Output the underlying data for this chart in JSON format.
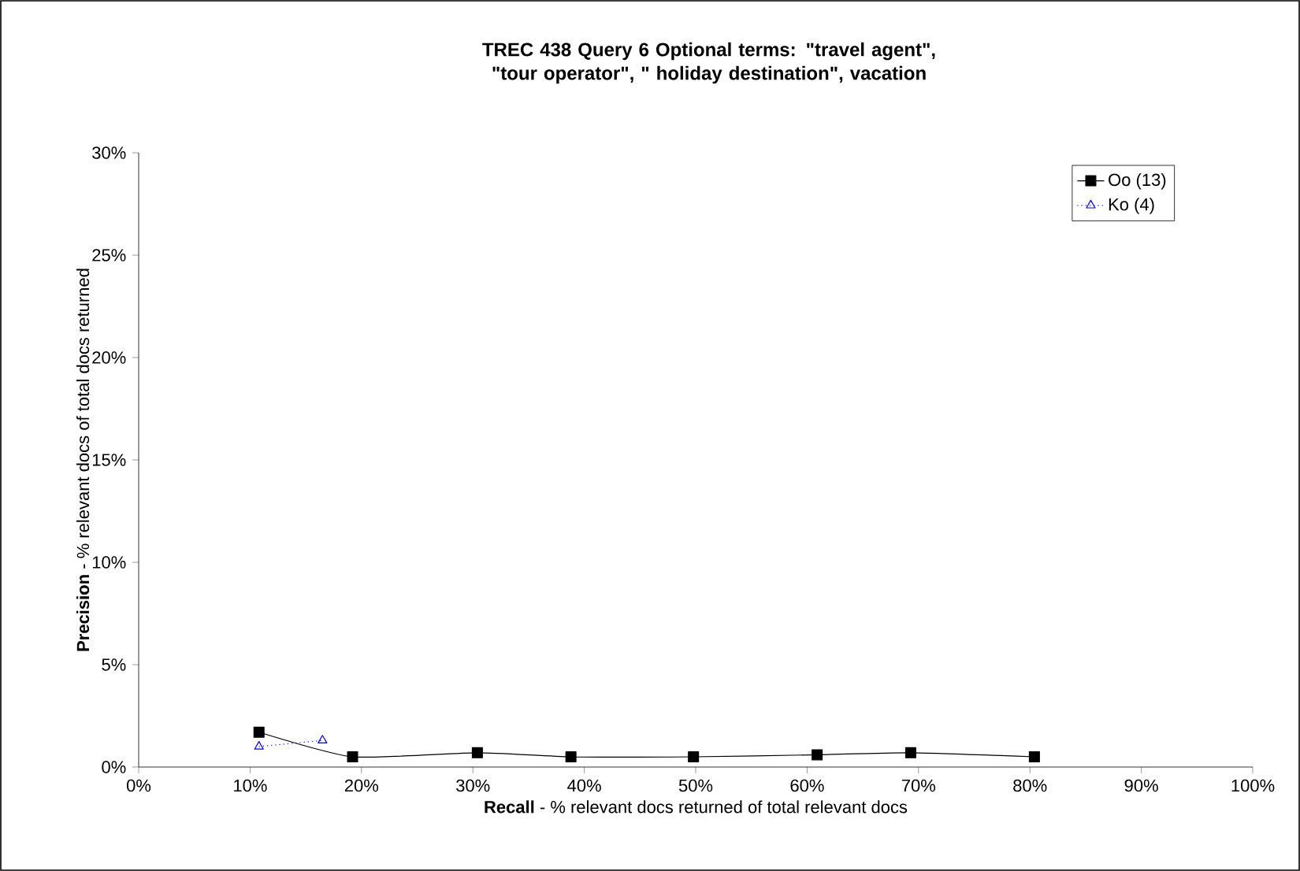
{
  "chart_data": {
    "type": "line",
    "title": "TREC 438 Query 6 Optional terms: \"travel agent\", \"tour operator\",  \" holiday destination\", vacation",
    "xlabel": "**Recall** - % relevant docs returned of total relevant docs",
    "ylabel": "**Precision** - % relevant docs of total docs returned",
    "series": [
      {
        "name": "Oo (13)",
        "color": "#000000",
        "marker": "square",
        "line_style": "solid",
        "x": [
          10.8,
          19.2,
          30.4,
          38.8,
          49.8,
          60.9,
          69.3,
          80.4
        ],
        "values": [
          1.7,
          0.5,
          0.7,
          0.5,
          0.5,
          0.6,
          0.7,
          0.5
        ]
      },
      {
        "name": "Ko (4)",
        "color": "#0000ff",
        "marker": "triangle",
        "line_style": "dotted",
        "x": [
          10.8,
          16.5
        ],
        "values": [
          1.0,
          1.3
        ]
      }
    ],
    "xlim": [
      0,
      100
    ],
    "ylim": [
      0,
      30
    ],
    "xticks": [
      {
        "value": 0,
        "label": "0%"
      },
      {
        "value": 10,
        "label": "10%"
      },
      {
        "value": 20,
        "label": "20%"
      },
      {
        "value": 30,
        "label": "30%"
      },
      {
        "value": 40,
        "label": "40%"
      },
      {
        "value": 50,
        "label": "50%"
      },
      {
        "value": 60,
        "label": "60%"
      },
      {
        "value": 70,
        "label": "70%"
      },
      {
        "value": 80,
        "label": "80%"
      },
      {
        "value": 90,
        "label": "90%"
      },
      {
        "value": 100,
        "label": "100%"
      }
    ],
    "yticks": [
      {
        "value": 0,
        "label": "0%"
      },
      {
        "value": 5,
        "label": "5%"
      },
      {
        "value": 10,
        "label": "10%"
      },
      {
        "value": 15,
        "label": "15%"
      },
      {
        "value": 20,
        "label": "20%"
      },
      {
        "value": 25,
        "label": "25%"
      },
      {
        "value": 30,
        "label": "30%"
      }
    ],
    "legend": "top right"
  }
}
